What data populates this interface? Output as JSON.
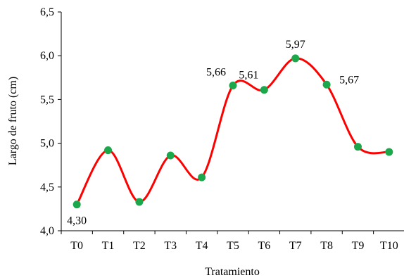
{
  "chart_data": {
    "type": "line",
    "title": "",
    "xlabel": "Tratamiento",
    "ylabel": "Largo de fruto (cm)",
    "categories": [
      "T0",
      "T1",
      "T2",
      "T3",
      "T4",
      "T5",
      "T6",
      "T7",
      "T8",
      "T9",
      "T10"
    ],
    "values": [
      4.3,
      4.92,
      4.33,
      4.86,
      4.61,
      5.66,
      5.61,
      5.97,
      5.67,
      4.96,
      4.9
    ],
    "ylim": [
      4.0,
      6.5
    ],
    "yticks": [
      "4,0",
      "4,5",
      "5,0",
      "5,5",
      "6,0",
      "6,5"
    ],
    "yticks_values": [
      4.0,
      4.5,
      5.0,
      5.5,
      6.0,
      6.5
    ],
    "data_labels": [
      {
        "index": 0,
        "text": "4,30"
      },
      {
        "index": 5,
        "text": "5,66"
      },
      {
        "index": 6,
        "text": "5,61"
      },
      {
        "index": 7,
        "text": "5,97"
      },
      {
        "index": 8,
        "text": "5,67"
      }
    ],
    "grid": false,
    "smooth": true,
    "line_color": "#ff0000",
    "marker_color": "#1aa84a"
  }
}
